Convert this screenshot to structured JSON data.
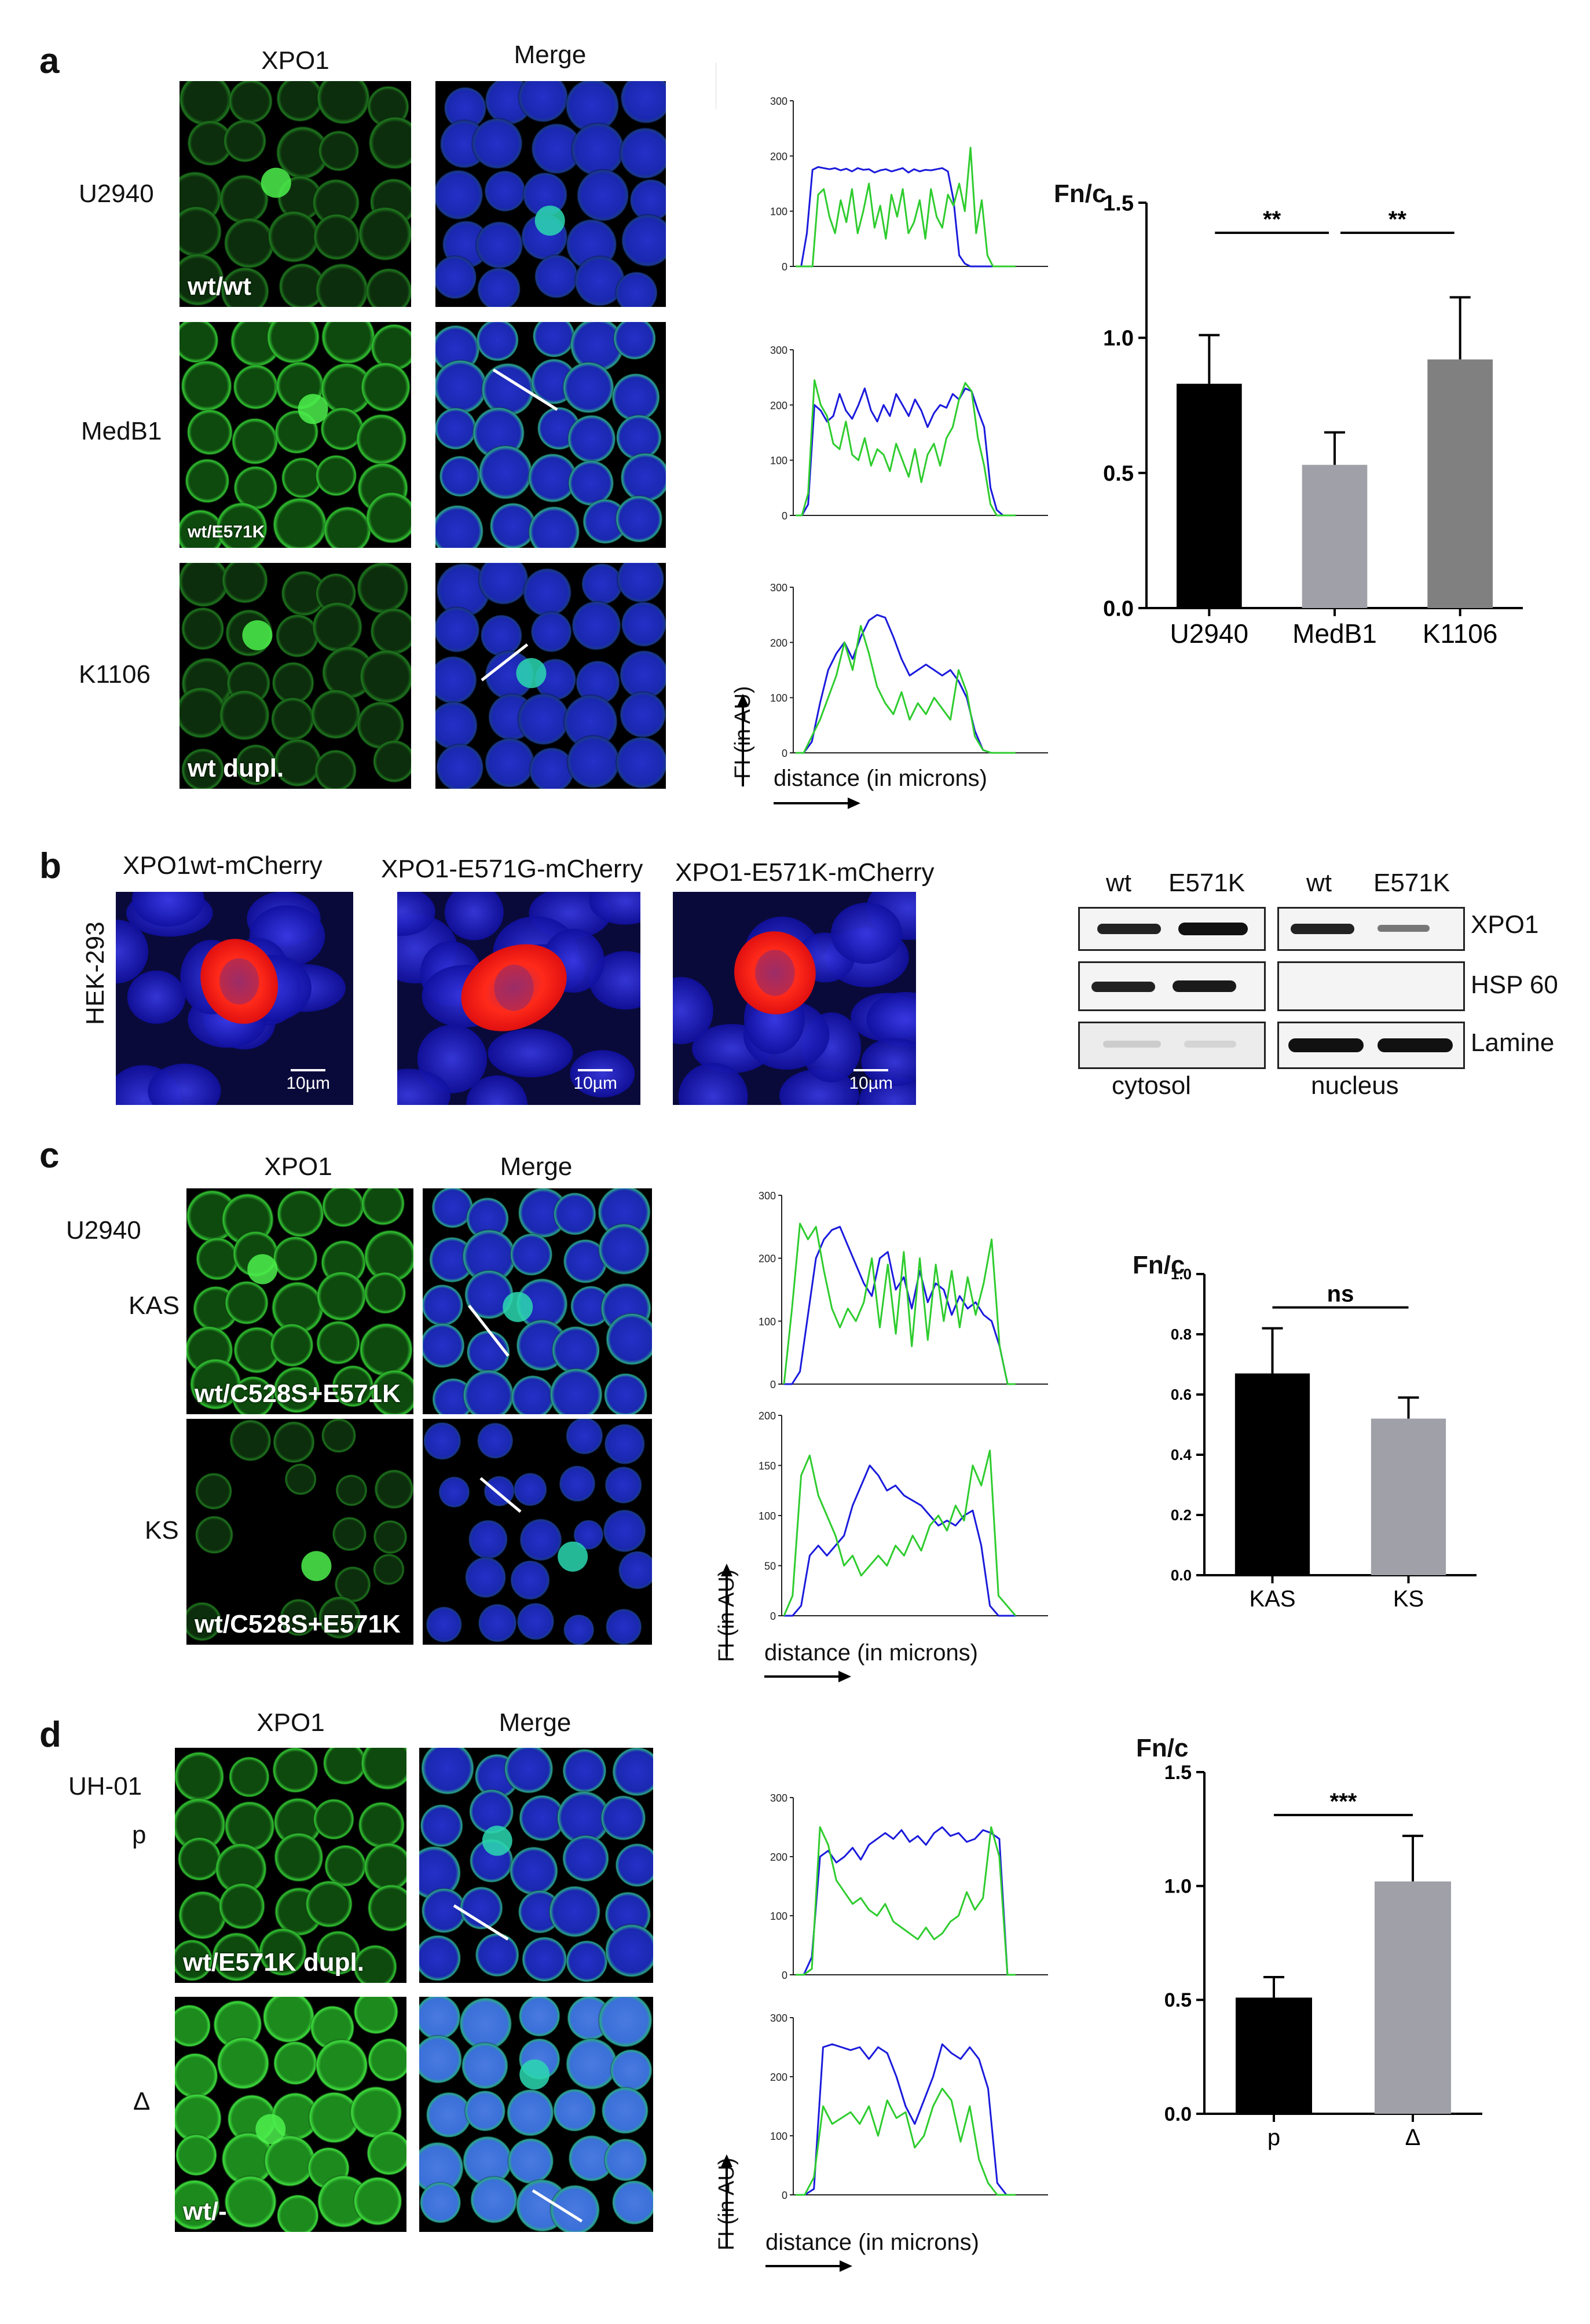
{
  "panels": {
    "a": {
      "letter": "a",
      "col_headers": [
        "XPO1",
        "Merge"
      ],
      "rows": [
        {
          "label": "U2940",
          "tag": "wt/wt"
        },
        {
          "label": "MedB1",
          "tag": "wt/E571K"
        },
        {
          "label": "K1106",
          "tag": "wt  dupl."
        }
      ],
      "profile_axis": {
        "y": "FI (in AU)",
        "x": "distance (in microns)"
      },
      "bar_ylabel": "Fn/c",
      "sig": [
        "**",
        "**"
      ]
    },
    "b": {
      "letter": "b",
      "side_label": "HEK-293",
      "images": [
        {
          "title": "XPO1wt-mCherry",
          "scale": "10µm"
        },
        {
          "title": "XPO1-E571G-mCherry",
          "scale": "10µm"
        },
        {
          "title": "XPO1-E571K-mCherry",
          "scale": "10µm"
        }
      ],
      "blot": {
        "lanes": [
          "wt",
          "E571K"
        ],
        "proteins": [
          "XPO1",
          "HSP 60",
          "Lamine"
        ],
        "fractions": [
          "cytosol",
          "nucleus"
        ]
      }
    },
    "c": {
      "letter": "c",
      "col_headers": [
        "XPO1",
        "Merge"
      ],
      "cell_line": "U2940",
      "rows": [
        {
          "label": "KAS",
          "tag": "wt/C528S+E571K"
        },
        {
          "label": "KS",
          "tag": "wt/C528S+E571K"
        }
      ],
      "profile_axis": {
        "y": "FI (in AU)",
        "x": "distance (in microns)"
      },
      "bar_ylabel": "Fn/c",
      "sig": [
        "ns"
      ]
    },
    "d": {
      "letter": "d",
      "col_headers": [
        "XPO1",
        "Merge"
      ],
      "cell_line": "UH-01",
      "rows": [
        {
          "label": "p",
          "tag": "wt/E571K dupl."
        },
        {
          "label": "Δ",
          "tag": "wt/-"
        }
      ],
      "profile_axis": {
        "y": "FI (in AU)",
        "x": "distance (in microns)"
      },
      "bar_ylabel": "Fn/c",
      "sig": [
        "***"
      ]
    }
  },
  "colors": {
    "green": "#2ecc2e",
    "blue": "#1a1adc",
    "black": "#000000",
    "gray_light": "#a0a0a8",
    "gray_mid": "#808080",
    "mcherry": "#ff2020"
  },
  "chart_data": [
    {
      "id": "a-bar",
      "type": "bar",
      "categories": [
        "U2940",
        "MedB1",
        "K1106"
      ],
      "values": [
        0.83,
        0.53,
        0.92
      ],
      "errors": [
        0.18,
        0.12,
        0.23
      ],
      "colors": [
        "#000000",
        "#a0a0a8",
        "#808080"
      ],
      "ylabel": "Fn/c",
      "ylim": [
        0,
        1.5
      ],
      "yticks": [
        "0.0",
        "0.5",
        "1.0",
        "1.5"
      ],
      "significance": [
        {
          "from": 0,
          "to": 1,
          "label": "**"
        },
        {
          "from": 1,
          "to": 2,
          "label": "**"
        }
      ]
    },
    {
      "id": "c-bar",
      "type": "bar",
      "categories": [
        "KAS",
        "KS"
      ],
      "values": [
        0.67,
        0.52
      ],
      "errors": [
        0.15,
        0.07
      ],
      "colors": [
        "#000000",
        "#a0a0a8"
      ],
      "ylabel": "Fn/c",
      "ylim": [
        0,
        1.0
      ],
      "yticks": [
        "0.0",
        "0.2",
        "0.4",
        "0.6",
        "0.8",
        "1.0"
      ],
      "significance": [
        {
          "from": 0,
          "to": 1,
          "label": "ns"
        }
      ]
    },
    {
      "id": "d-bar",
      "type": "bar",
      "categories": [
        "p",
        "Δ"
      ],
      "values": [
        0.51,
        1.02
      ],
      "errors": [
        0.09,
        0.2
      ],
      "colors": [
        "#000000",
        "#a0a0a8"
      ],
      "ylabel": "Fn/c",
      "ylim": [
        0,
        1.5
      ],
      "yticks": [
        "0.0",
        "0.5",
        "1.0",
        "1.5"
      ],
      "significance": [
        {
          "from": 0,
          "to": 1,
          "label": "***"
        }
      ]
    },
    {
      "id": "a-prof1",
      "type": "line",
      "ylim": [
        0,
        300
      ],
      "yticks": [
        "0",
        "100",
        "200",
        "300"
      ],
      "series": [
        {
          "color": "#1a1adc",
          "values": [
            0,
            0,
            60,
            175,
            180,
            178,
            176,
            178,
            174,
            177,
            172,
            178,
            175,
            176,
            170,
            174,
            176,
            172,
            175,
            178,
            170,
            176,
            172,
            175,
            174,
            176,
            178,
            172,
            120,
            20,
            5,
            0,
            0,
            0,
            0,
            0,
            0,
            0,
            0,
            0
          ]
        },
        {
          "color": "#2ecc2e",
          "values": [
            0,
            0,
            0,
            0,
            130,
            140,
            90,
            60,
            120,
            80,
            140,
            60,
            100,
            150,
            70,
            110,
            50,
            130,
            90,
            140,
            60,
            80,
            120,
            50,
            140,
            90,
            70,
            130,
            110,
            150,
            100,
            215,
            60,
            120,
            20,
            0,
            0,
            0,
            0,
            0
          ]
        }
      ]
    },
    {
      "id": "a-prof2",
      "type": "line",
      "ylim": [
        0,
        300
      ],
      "yticks": [
        "0",
        "100",
        "200",
        "300"
      ],
      "series": [
        {
          "color": "#1a1adc",
          "values": [
            0,
            0,
            20,
            200,
            190,
            170,
            180,
            220,
            190,
            175,
            200,
            230,
            190,
            170,
            200,
            180,
            220,
            200,
            180,
            210,
            190,
            160,
            185,
            200,
            195,
            220,
            210,
            230,
            225,
            190,
            160,
            50,
            10,
            0,
            0,
            0
          ]
        },
        {
          "color": "#2ecc2e",
          "values": [
            0,
            0,
            40,
            245,
            200,
            180,
            130,
            120,
            170,
            110,
            100,
            140,
            90,
            120,
            110,
            80,
            130,
            100,
            70,
            120,
            60,
            110,
            130,
            90,
            140,
            160,
            210,
            240,
            225,
            140,
            90,
            20,
            0,
            0,
            0,
            0
          ]
        }
      ]
    },
    {
      "id": "a-prof3",
      "type": "line",
      "ylim": [
        0,
        300
      ],
      "yticks": [
        "0",
        "100",
        "200",
        "300"
      ],
      "series": [
        {
          "color": "#1a1adc",
          "values": [
            0,
            0,
            20,
            90,
            150,
            180,
            200,
            170,
            210,
            240,
            250,
            245,
            210,
            170,
            140,
            150,
            160,
            150,
            140,
            150,
            130,
            100,
            40,
            5,
            0,
            0,
            0,
            0
          ]
        },
        {
          "color": "#2ecc2e",
          "values": [
            0,
            0,
            30,
            60,
            100,
            140,
            200,
            150,
            230,
            180,
            120,
            90,
            70,
            110,
            60,
            90,
            70,
            100,
            80,
            60,
            150,
            110,
            30,
            5,
            0,
            0,
            0,
            0
          ]
        }
      ]
    },
    {
      "id": "c-prof1",
      "type": "line",
      "ylim": [
        0,
        300
      ],
      "yticks": [
        "0",
        "100",
        "200",
        "300"
      ],
      "series": [
        {
          "color": "#1a1adc",
          "values": [
            0,
            0,
            20,
            110,
            200,
            230,
            245,
            250,
            220,
            190,
            160,
            140,
            200,
            210,
            150,
            170,
            120,
            180,
            130,
            160,
            150,
            110,
            140,
            120,
            130,
            110,
            100,
            60,
            0,
            0
          ]
        },
        {
          "color": "#2ecc2e",
          "values": [
            0,
            120,
            255,
            230,
            250,
            180,
            120,
            90,
            120,
            100,
            130,
            200,
            90,
            190,
            80,
            210,
            60,
            200,
            70,
            190,
            100,
            180,
            90,
            170,
            110,
            160,
            230,
            60,
            0,
            0
          ]
        }
      ]
    },
    {
      "id": "c-prof2",
      "type": "line",
      "ylim": [
        0,
        200
      ],
      "yticks": [
        "0",
        "50",
        "100",
        "150",
        "200"
      ],
      "series": [
        {
          "color": "#1a1adc",
          "values": [
            0,
            0,
            10,
            60,
            70,
            60,
            70,
            80,
            110,
            130,
            150,
            140,
            125,
            130,
            120,
            115,
            110,
            100,
            90,
            95,
            90,
            100,
            105,
            70,
            10,
            0,
            0,
            0
          ]
        },
        {
          "color": "#2ecc2e",
          "values": [
            0,
            20,
            140,
            160,
            120,
            100,
            80,
            50,
            60,
            40,
            50,
            60,
            50,
            70,
            60,
            80,
            65,
            90,
            100,
            85,
            110,
            95,
            150,
            130,
            165,
            20,
            10,
            0
          ]
        }
      ]
    },
    {
      "id": "d-prof1",
      "type": "line",
      "ylim": [
        0,
        300
      ],
      "yticks": [
        "0",
        "100",
        "200",
        "300"
      ],
      "series": [
        {
          "color": "#1a1adc",
          "values": [
            0,
            0,
            30,
            200,
            210,
            190,
            200,
            215,
            195,
            220,
            230,
            240,
            230,
            245,
            225,
            235,
            220,
            240,
            250,
            235,
            240,
            225,
            230,
            245,
            240,
            230,
            0,
            0
          ]
        },
        {
          "color": "#2ecc2e",
          "values": [
            0,
            0,
            10,
            250,
            220,
            160,
            140,
            120,
            130,
            110,
            100,
            120,
            90,
            80,
            70,
            60,
            80,
            60,
            70,
            90,
            100,
            140,
            110,
            130,
            250,
            200,
            0,
            0
          ]
        }
      ]
    },
    {
      "id": "d-prof2",
      "type": "line",
      "ylim": [
        0,
        300
      ],
      "yticks": [
        "0",
        "100",
        "200",
        "300"
      ],
      "series": [
        {
          "color": "#1a1adc",
          "values": [
            0,
            0,
            10,
            250,
            255,
            250,
            245,
            250,
            230,
            250,
            240,
            200,
            150,
            120,
            160,
            200,
            255,
            240,
            230,
            250,
            230,
            180,
            20,
            0,
            0
          ]
        },
        {
          "color": "#2ecc2e",
          "values": [
            0,
            0,
            30,
            150,
            120,
            130,
            140,
            120,
            150,
            100,
            160,
            130,
            140,
            80,
            100,
            150,
            180,
            160,
            90,
            150,
            60,
            20,
            0,
            0,
            0
          ]
        }
      ]
    }
  ]
}
